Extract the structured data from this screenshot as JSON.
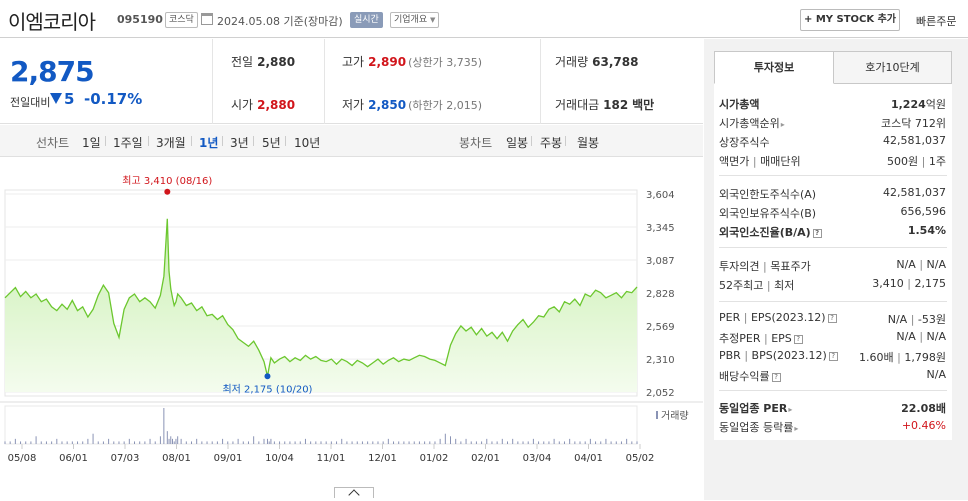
{
  "header": {
    "name": "이엠코리아",
    "code": "095190",
    "market": "코스닥",
    "date": "2024.05.08",
    "date_suffix": "기준(장마감)",
    "realtime": "실시간",
    "company_info": "기업개요",
    "mystock": "MY STOCK 추가",
    "fast_order": "빠른주문"
  },
  "quote": {
    "price": "2,875",
    "change_label": "전일대비",
    "change": "5",
    "change_pct": "-0.17%",
    "prev_label": "전일",
    "prev": "2,880",
    "high_label": "고가",
    "high": "2,890",
    "upper_limit": "(상한가 3,735)",
    "volume_label": "거래량",
    "volume": "63,788",
    "open_label": "시가",
    "open": "2,880",
    "low_label": "저가",
    "low": "2,850",
    "lower_limit": "(하한가 2,015)",
    "amount_label": "거래대금",
    "amount": "182",
    "amount_unit": "백만"
  },
  "periods": {
    "line_label": "선차트",
    "line_items": [
      "1일",
      "1주일",
      "3개월",
      "1년",
      "3년",
      "5년",
      "10년"
    ],
    "selected": "1년",
    "candle_label": "봉차트",
    "candle_items": [
      "일봉",
      "주봉",
      "월봉"
    ]
  },
  "chart_data": {
    "type": "area",
    "y_ticks": [
      3604,
      3345,
      3087,
      2828,
      2569,
      2310,
      2052
    ],
    "ylim": [
      2052,
      3604
    ],
    "x_ticks": [
      "05/08",
      "06/01",
      "07/03",
      "08/01",
      "09/01",
      "10/04",
      "11/01",
      "12/01",
      "01/02",
      "02/01",
      "03/04",
      "04/01",
      "05/02"
    ],
    "x": [
      0,
      3,
      6,
      9,
      12,
      15,
      18,
      21,
      24,
      27,
      30,
      33,
      36,
      39,
      42,
      45,
      48,
      51,
      54,
      57,
      60,
      63,
      66,
      69,
      72,
      75,
      78,
      81,
      84,
      87,
      90,
      92,
      94,
      95,
      96,
      97,
      98,
      99,
      100,
      102,
      105,
      108,
      111,
      114,
      117,
      120,
      123,
      126,
      129,
      132,
      135,
      138,
      141,
      144,
      147,
      150,
      152,
      153,
      154,
      156,
      159,
      162,
      165,
      168,
      171,
      174,
      177,
      180,
      183,
      186,
      189,
      192,
      195,
      198,
      201,
      204,
      207,
      210,
      213,
      216,
      219,
      222,
      225,
      228,
      231,
      234,
      237,
      240,
      243,
      246,
      249,
      252,
      255,
      258,
      261,
      264,
      267,
      270,
      273,
      276,
      279,
      282,
      285,
      288,
      291,
      294,
      297,
      300,
      303,
      306,
      309,
      312,
      315,
      318,
      321,
      324,
      327,
      330,
      333,
      336,
      339,
      342,
      345,
      348,
      351,
      354,
      357,
      360,
      363,
      366
    ],
    "y": [
      2790,
      2830,
      2870,
      2800,
      2840,
      2790,
      2820,
      2760,
      2780,
      2720,
      2690,
      2740,
      2700,
      2770,
      2690,
      2720,
      2640,
      2700,
      2810,
      2890,
      2830,
      2590,
      2480,
      2700,
      2790,
      2820,
      2760,
      2790,
      2760,
      2710,
      2810,
      2960,
      3410,
      3000,
      2860,
      2790,
      2730,
      2760,
      2820,
      2790,
      2730,
      2750,
      2690,
      2720,
      2650,
      2660,
      2620,
      2650,
      2580,
      2540,
      2470,
      2440,
      2410,
      2450,
      2380,
      2290,
      2175,
      2250,
      2320,
      2280,
      2310,
      2330,
      2290,
      2320,
      2300,
      2340,
      2310,
      2330,
      2300,
      2290,
      2310,
      2270,
      2310,
      2290,
      2260,
      2300,
      2280,
      2250,
      2280,
      2310,
      2270,
      2300,
      2320,
      2290,
      2310,
      2300,
      2320,
      2340,
      2330,
      2310,
      2300,
      2280,
      2260,
      2420,
      2510,
      2570,
      2530,
      2560,
      2500,
      2550,
      2490,
      2520,
      2470,
      2520,
      2450,
      2530,
      2580,
      2620,
      2560,
      2600,
      2650,
      2640,
      2700,
      2720,
      2680,
      2760,
      2740,
      2780,
      2730,
      2820,
      2800,
      2850,
      2830,
      2790,
      2810,
      2830,
      2790,
      2840,
      2830,
      2875
    ],
    "max_label": "최고",
    "max_value": "3,410",
    "max_date": "(08/16)",
    "min_label": "최저",
    "min_value": "2,175",
    "min_date": "(10/20)",
    "volume_label": "거래량",
    "volume": [
      1,
      1,
      2,
      1,
      1,
      1,
      3,
      1,
      1,
      1,
      2,
      1,
      1,
      1,
      1,
      1,
      2,
      4,
      1,
      1,
      2,
      1,
      1,
      1,
      2,
      1,
      1,
      1,
      2,
      1,
      3,
      14,
      5,
      2,
      3,
      2,
      1,
      2,
      3,
      2,
      1,
      1,
      2,
      1,
      1,
      1,
      1,
      2,
      1,
      1,
      2,
      1,
      1,
      3,
      1,
      2,
      2,
      1,
      2,
      1,
      1,
      1,
      1,
      1,
      1,
      2,
      1,
      1,
      1,
      1,
      1,
      1,
      2,
      1,
      1,
      1,
      1,
      1,
      1,
      1,
      1,
      2,
      1,
      1,
      1,
      1,
      1,
      1,
      1,
      1,
      1,
      2,
      4,
      3,
      2,
      1,
      2,
      1,
      1,
      1,
      2,
      1,
      1,
      2,
      1,
      2,
      1,
      1,
      1,
      2,
      1,
      1,
      1,
      2,
      1,
      1,
      2,
      1,
      1,
      1,
      2,
      1,
      1,
      2,
      1,
      1,
      1,
      2,
      1,
      1
    ]
  },
  "side": {
    "tab_active": "투자정보",
    "tab_other": "호가10단계",
    "market_cap_label": "시가총액",
    "market_cap": "1,224",
    "market_cap_unit": "억원",
    "cap_rank_label": "시가총액순위",
    "cap_rank": "코스닥 712위",
    "shares_label": "상장주식수",
    "shares": "42,581,037",
    "par_label": "액면가",
    "trade_unit_label": "매매단위",
    "par": "500원",
    "trade_unit": "1주",
    "foreign_limit_label": "외국인한도주식수(A)",
    "foreign_limit": "42,581,037",
    "foreign_hold_label": "외국인보유주식수(B)",
    "foreign_hold": "656,596",
    "foreign_rate_label": "외국인소진율(B/A)",
    "foreign_rate": "1.54%",
    "opinion_label": "투자의견",
    "target_label": "목표주가",
    "opinion": "N/A",
    "target": "N/A",
    "w52_label": "52주최고",
    "w52_low_label": "최저",
    "w52_high": "3,410",
    "w52_low": "2,175",
    "per_label": "PER",
    "eps_label": "EPS(2023.12)",
    "per": "N/A",
    "eps": "-53원",
    "est_per_label": "추정PER",
    "est_eps_label": "EPS",
    "est_per": "N/A",
    "est_eps": "N/A",
    "pbr_label": "PBR",
    "bps_label": "BPS(2023.12)",
    "pbr": "1.60배",
    "bps": "1,798원",
    "div_label": "배당수익률",
    "div": "N/A",
    "ind_per_label": "동일업종 PER",
    "ind_per": "22.08배",
    "ind_chg_label": "동일업종 등락률",
    "ind_chg": "+0.46%"
  }
}
